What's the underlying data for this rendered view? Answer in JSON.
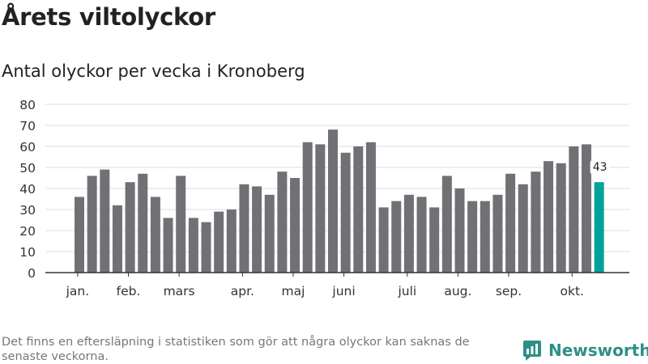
{
  "title": "Årets viltolyckor",
  "subtitle": "Antal olyckor per vecka i Kronoberg",
  "footnote": "Det finns en eftersläpning i statistiken som gör att några olyckor kan saknas de senaste veckorna.",
  "brand": {
    "name": "Newsworthy"
  },
  "colors": {
    "bar": "#717074",
    "highlight": "#00a19a",
    "grid": "#dddddd",
    "axis": "#333333",
    "brand": "#2f8f87"
  },
  "chart_data": {
    "type": "bar",
    "title": "Antal olyckor per vecka i Kronoberg",
    "xlabel": "",
    "ylabel": "",
    "ylim": [
      0,
      80
    ],
    "yticks": [
      0,
      10,
      20,
      30,
      40,
      50,
      60,
      70,
      80
    ],
    "values": [
      36,
      46,
      49,
      32,
      43,
      47,
      36,
      26,
      46,
      26,
      24,
      29,
      30,
      42,
      41,
      37,
      48,
      45,
      62,
      61,
      68,
      57,
      60,
      62,
      31,
      34,
      37,
      36,
      31,
      46,
      40,
      34,
      34,
      37,
      47,
      42,
      48,
      53,
      52,
      60,
      61,
      43
    ],
    "highlight_index": 41,
    "highlight_label": "43",
    "month_labels": [
      {
        "label": "jan.",
        "index": 0.25
      },
      {
        "label": "feb.",
        "index": 4.25
      },
      {
        "label": "mars",
        "index": 8.25
      },
      {
        "label": "apr.",
        "index": 13.25
      },
      {
        "label": "maj",
        "index": 17.25
      },
      {
        "label": "juni",
        "index": 21.25
      },
      {
        "label": "juli",
        "index": 26.25
      },
      {
        "label": "aug.",
        "index": 30.25
      },
      {
        "label": "sep.",
        "index": 34.25
      },
      {
        "label": "okt.",
        "index": 39.25
      }
    ]
  }
}
